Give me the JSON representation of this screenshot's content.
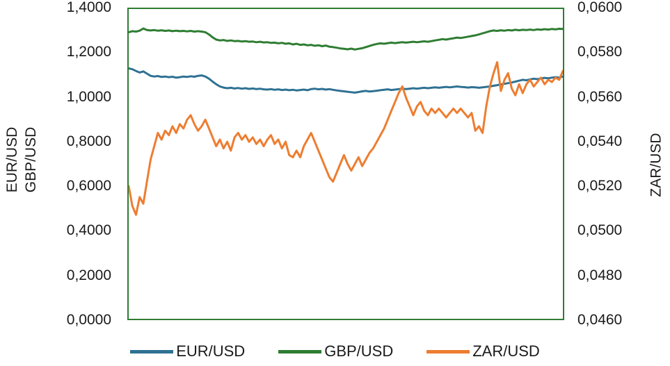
{
  "chart_data": {
    "type": "line",
    "title": "",
    "grid": false,
    "plot_border_color": "#2e7d32",
    "legend_position": "bottom",
    "left_axis": {
      "title_lines": [
        "EUR/USD",
        "GBP/USD"
      ],
      "min": 0.0,
      "max": 1.4,
      "tick_step": 0.2,
      "tick_labels": [
        "1,4000",
        "1,2000",
        "1,0000",
        "0,8000",
        "0,6000",
        "0,4000",
        "0,2000",
        "0,0000"
      ]
    },
    "right_axis": {
      "title": "ZAR/USD",
      "min": 0.046,
      "max": 0.06,
      "tick_step": 0.002,
      "tick_labels": [
        "0,0600",
        "0,0580",
        "0,0560",
        "0,0540",
        "0,0520",
        "0,0500",
        "0,0480",
        "0,0460"
      ]
    },
    "series": [
      {
        "name": "EUR/USD",
        "axis": "left",
        "color": "#2e7193",
        "values": [
          1.132,
          1.128,
          1.12,
          1.113,
          1.118,
          1.108,
          1.098,
          1.095,
          1.097,
          1.093,
          1.095,
          1.092,
          1.094,
          1.09,
          1.092,
          1.095,
          1.093,
          1.096,
          1.094,
          1.098,
          1.1,
          1.095,
          1.085,
          1.072,
          1.06,
          1.05,
          1.045,
          1.042,
          1.044,
          1.041,
          1.043,
          1.04,
          1.042,
          1.039,
          1.041,
          1.038,
          1.04,
          1.037,
          1.036,
          1.038,
          1.035,
          1.037,
          1.034,
          1.036,
          1.033,
          1.035,
          1.032,
          1.034,
          1.036,
          1.033,
          1.038,
          1.04,
          1.037,
          1.039,
          1.036,
          1.038,
          1.035,
          1.032,
          1.03,
          1.028,
          1.026,
          1.024,
          1.022,
          1.025,
          1.028,
          1.03,
          1.027,
          1.029,
          1.031,
          1.033,
          1.035,
          1.037,
          1.034,
          1.036,
          1.038,
          1.04,
          1.038,
          1.04,
          1.042,
          1.04,
          1.042,
          1.044,
          1.042,
          1.044,
          1.046,
          1.044,
          1.046,
          1.048,
          1.046,
          1.048,
          1.05,
          1.048,
          1.047,
          1.045,
          1.047,
          1.046,
          1.044,
          1.046,
          1.048,
          1.05,
          1.053,
          1.056,
          1.059,
          1.062,
          1.065,
          1.068,
          1.072,
          1.076,
          1.08,
          1.078,
          1.082,
          1.085,
          1.083,
          1.086,
          1.089,
          1.087,
          1.09,
          1.092,
          1.09,
          1.095
        ]
      },
      {
        "name": "GBP/USD",
        "axis": "left",
        "color": "#2e7d32",
        "values": [
          1.295,
          1.3,
          1.298,
          1.302,
          1.312,
          1.305,
          1.303,
          1.305,
          1.302,
          1.304,
          1.301,
          1.303,
          1.3,
          1.302,
          1.3,
          1.301,
          1.299,
          1.301,
          1.298,
          1.3,
          1.298,
          1.295,
          1.285,
          1.272,
          1.262,
          1.258,
          1.26,
          1.256,
          1.258,
          1.255,
          1.256,
          1.253,
          1.255,
          1.252,
          1.253,
          1.25,
          1.252,
          1.249,
          1.25,
          1.247,
          1.248,
          1.245,
          1.247,
          1.243,
          1.245,
          1.24,
          1.243,
          1.238,
          1.24,
          1.236,
          1.238,
          1.234,
          1.236,
          1.232,
          1.235,
          1.23,
          1.228,
          1.225,
          1.222,
          1.22,
          1.218,
          1.221,
          1.217,
          1.22,
          1.223,
          1.228,
          1.233,
          1.238,
          1.242,
          1.245,
          1.243,
          1.246,
          1.248,
          1.246,
          1.248,
          1.25,
          1.248,
          1.25,
          1.252,
          1.25,
          1.252,
          1.254,
          1.252,
          1.255,
          1.258,
          1.261,
          1.264,
          1.262,
          1.265,
          1.268,
          1.271,
          1.269,
          1.272,
          1.275,
          1.278,
          1.281,
          1.285,
          1.29,
          1.295,
          1.3,
          1.303,
          1.301,
          1.304,
          1.302,
          1.305,
          1.303,
          1.306,
          1.304,
          1.306,
          1.305,
          1.307,
          1.305,
          1.308,
          1.306,
          1.309,
          1.307,
          1.31,
          1.308,
          1.311,
          1.31
        ]
      },
      {
        "name": "ZAR/USD",
        "axis": "right",
        "color": "#ed7d31",
        "values": [
          0.052,
          0.0511,
          0.0507,
          0.0515,
          0.0512,
          0.0522,
          0.0532,
          0.0538,
          0.0544,
          0.0541,
          0.0545,
          0.0543,
          0.0547,
          0.0544,
          0.0548,
          0.0546,
          0.055,
          0.0552,
          0.0548,
          0.0545,
          0.0547,
          0.055,
          0.0546,
          0.0542,
          0.0538,
          0.0541,
          0.0537,
          0.054,
          0.0536,
          0.0542,
          0.0544,
          0.0541,
          0.0543,
          0.054,
          0.0542,
          0.0539,
          0.0541,
          0.0538,
          0.0541,
          0.0543,
          0.0539,
          0.0541,
          0.0537,
          0.054,
          0.0534,
          0.0533,
          0.0536,
          0.0533,
          0.0538,
          0.0541,
          0.0544,
          0.054,
          0.0536,
          0.0532,
          0.0528,
          0.0524,
          0.0522,
          0.0526,
          0.053,
          0.0534,
          0.053,
          0.0527,
          0.053,
          0.0533,
          0.0529,
          0.0532,
          0.0535,
          0.0537,
          0.054,
          0.0543,
          0.0546,
          0.055,
          0.0554,
          0.0558,
          0.0562,
          0.0565,
          0.056,
          0.0556,
          0.0552,
          0.0556,
          0.0558,
          0.0554,
          0.0552,
          0.0555,
          0.0553,
          0.0555,
          0.0553,
          0.0551,
          0.0553,
          0.0555,
          0.0553,
          0.0555,
          0.0553,
          0.0551,
          0.0553,
          0.0545,
          0.0547,
          0.0544,
          0.0556,
          0.0565,
          0.0571,
          0.0576,
          0.0563,
          0.0568,
          0.0571,
          0.0564,
          0.0561,
          0.0566,
          0.0562,
          0.0566,
          0.0568,
          0.0565,
          0.0567,
          0.0569,
          0.0566,
          0.0568,
          0.0567,
          0.0569,
          0.0568,
          0.0572
        ]
      }
    ]
  }
}
